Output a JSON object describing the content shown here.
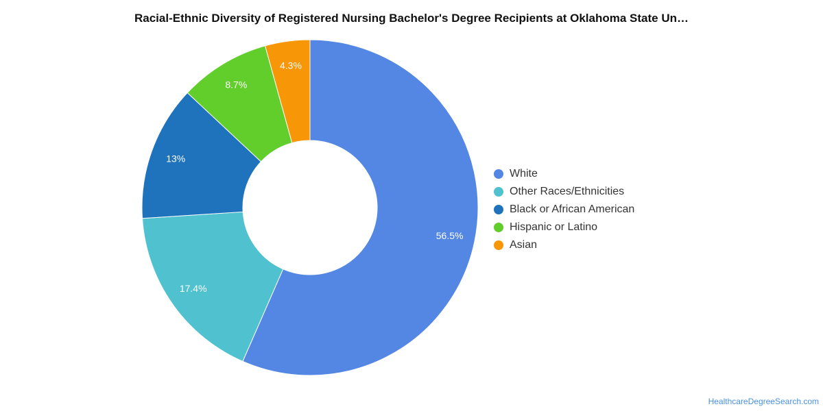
{
  "chart_data": {
    "type": "pie",
    "title": "Racial-Ethnic Diversity of Registered Nursing Bachelor's Degree Recipients at Oklahoma State Un…",
    "donut": true,
    "legend_position": "right",
    "series": [
      {
        "name": "White",
        "value": 56.5,
        "label": "56.5%",
        "color": "#5486e3"
      },
      {
        "name": "Other Races/Ethnicities",
        "value": 17.4,
        "label": "17.4%",
        "color": "#4fc1cf"
      },
      {
        "name": "Black or African American",
        "value": 13.0,
        "label": "13%",
        "color": "#1f72bc"
      },
      {
        "name": "Hispanic or Latino",
        "value": 8.7,
        "label": "8.7%",
        "color": "#62ce2c"
      },
      {
        "name": "Asian",
        "value": 4.3,
        "label": "4.3%",
        "color": "#f79606"
      }
    ]
  },
  "footer": {
    "source": "HealthcareDegreeSearch.com"
  }
}
